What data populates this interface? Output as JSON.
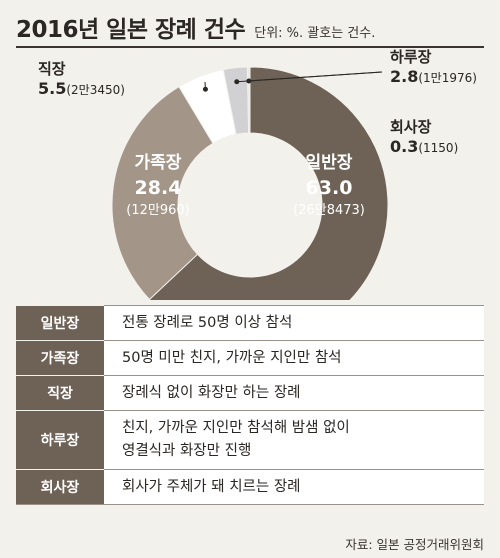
{
  "title": "2016년 일본 장례 건수",
  "subtitle": "단위: %. 괄호는 건수.",
  "chart_data": {
    "type": "pie",
    "donut": true,
    "slices": [
      {
        "name": "일반장",
        "value": 63.0,
        "value_label": "63.0",
        "count_label": "(26만8473)",
        "color": "#6e6257"
      },
      {
        "name": "가족장",
        "value": 28.4,
        "value_label": "28.4",
        "count_label": "(12만960)",
        "color": "#a39588"
      },
      {
        "name": "직장",
        "value": 5.5,
        "value_label": "5.5",
        "count_label": "(2만3450)",
        "color": "#ffffff"
      },
      {
        "name": "하루장",
        "value": 2.8,
        "value_label": "2.8",
        "count_label": "(1만1976)",
        "color": "#d1d0d3"
      },
      {
        "name": "회사장",
        "value": 0.3,
        "value_label": "0.3",
        "count_label": "(1150)",
        "color": "#ebe9e4"
      }
    ]
  },
  "table": {
    "rows": [
      {
        "name": "일반장",
        "lines": [
          "전통 장례로 50명 이상 참석"
        ]
      },
      {
        "name": "가족장",
        "lines": [
          "50명 미만 친지, 가까운 지인만 참석"
        ]
      },
      {
        "name": "직장",
        "lines": [
          "장례식 없이 화장만 하는 장례"
        ]
      },
      {
        "name": "하루장",
        "lines": [
          "친지, 가까운 지인만 참석해 밤샘 없이",
          "영결식과 화장만 진행"
        ]
      },
      {
        "name": "회사장",
        "lines": [
          "회사가 주체가 돼 치르는 장례"
        ]
      }
    ]
  },
  "source": "자료: 일본 공정거래위원회"
}
